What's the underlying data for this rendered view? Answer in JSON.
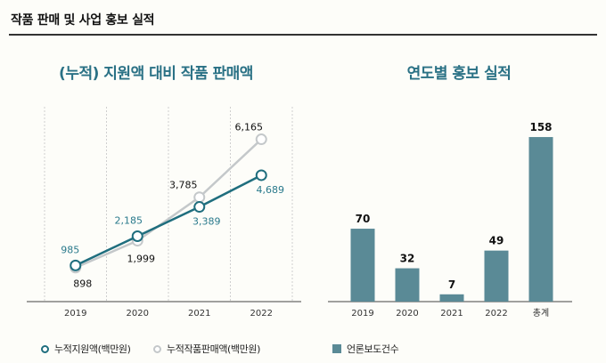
{
  "header": {
    "title": "작품 판매 및 사업 홍보 실적"
  },
  "colors": {
    "teal": "#1f6e7e",
    "gray": "#c4c8ca",
    "bar": "#5a8a96",
    "label_teal": "#2a7a8c",
    "title_teal": "#2a7185"
  },
  "chart_data": [
    {
      "type": "line",
      "title": "(누적) 지원액 대비 작품 판매액",
      "categories": [
        "2019",
        "2020",
        "2021",
        "2022"
      ],
      "series": [
        {
          "name": "누적지원액(백만원)",
          "values": [
            985,
            2185,
            3389,
            4689
          ]
        },
        {
          "name": "누적작품판매액(백만원)",
          "values": [
            898,
            1999,
            3785,
            6165
          ]
        }
      ],
      "data_labels": [
        [
          "985",
          "2,185",
          "3,389",
          "4,689"
        ],
        [
          "898",
          "1,999",
          "3,785",
          "6,165"
        ]
      ],
      "ylim": [
        -500,
        7500
      ],
      "grid": "vertical dashed",
      "legend": "bottom"
    },
    {
      "type": "bar",
      "title": "연도별 홍보 실적",
      "categories": [
        "2019",
        "2020",
        "2021",
        "2022",
        "총계"
      ],
      "values": [
        70,
        32,
        7,
        49,
        158
      ],
      "data_labels": [
        "70",
        "32",
        "7",
        "49",
        "158"
      ],
      "series_name": "언론보도건수",
      "ylim": [
        0,
        170
      ],
      "legend": "bottom"
    }
  ]
}
